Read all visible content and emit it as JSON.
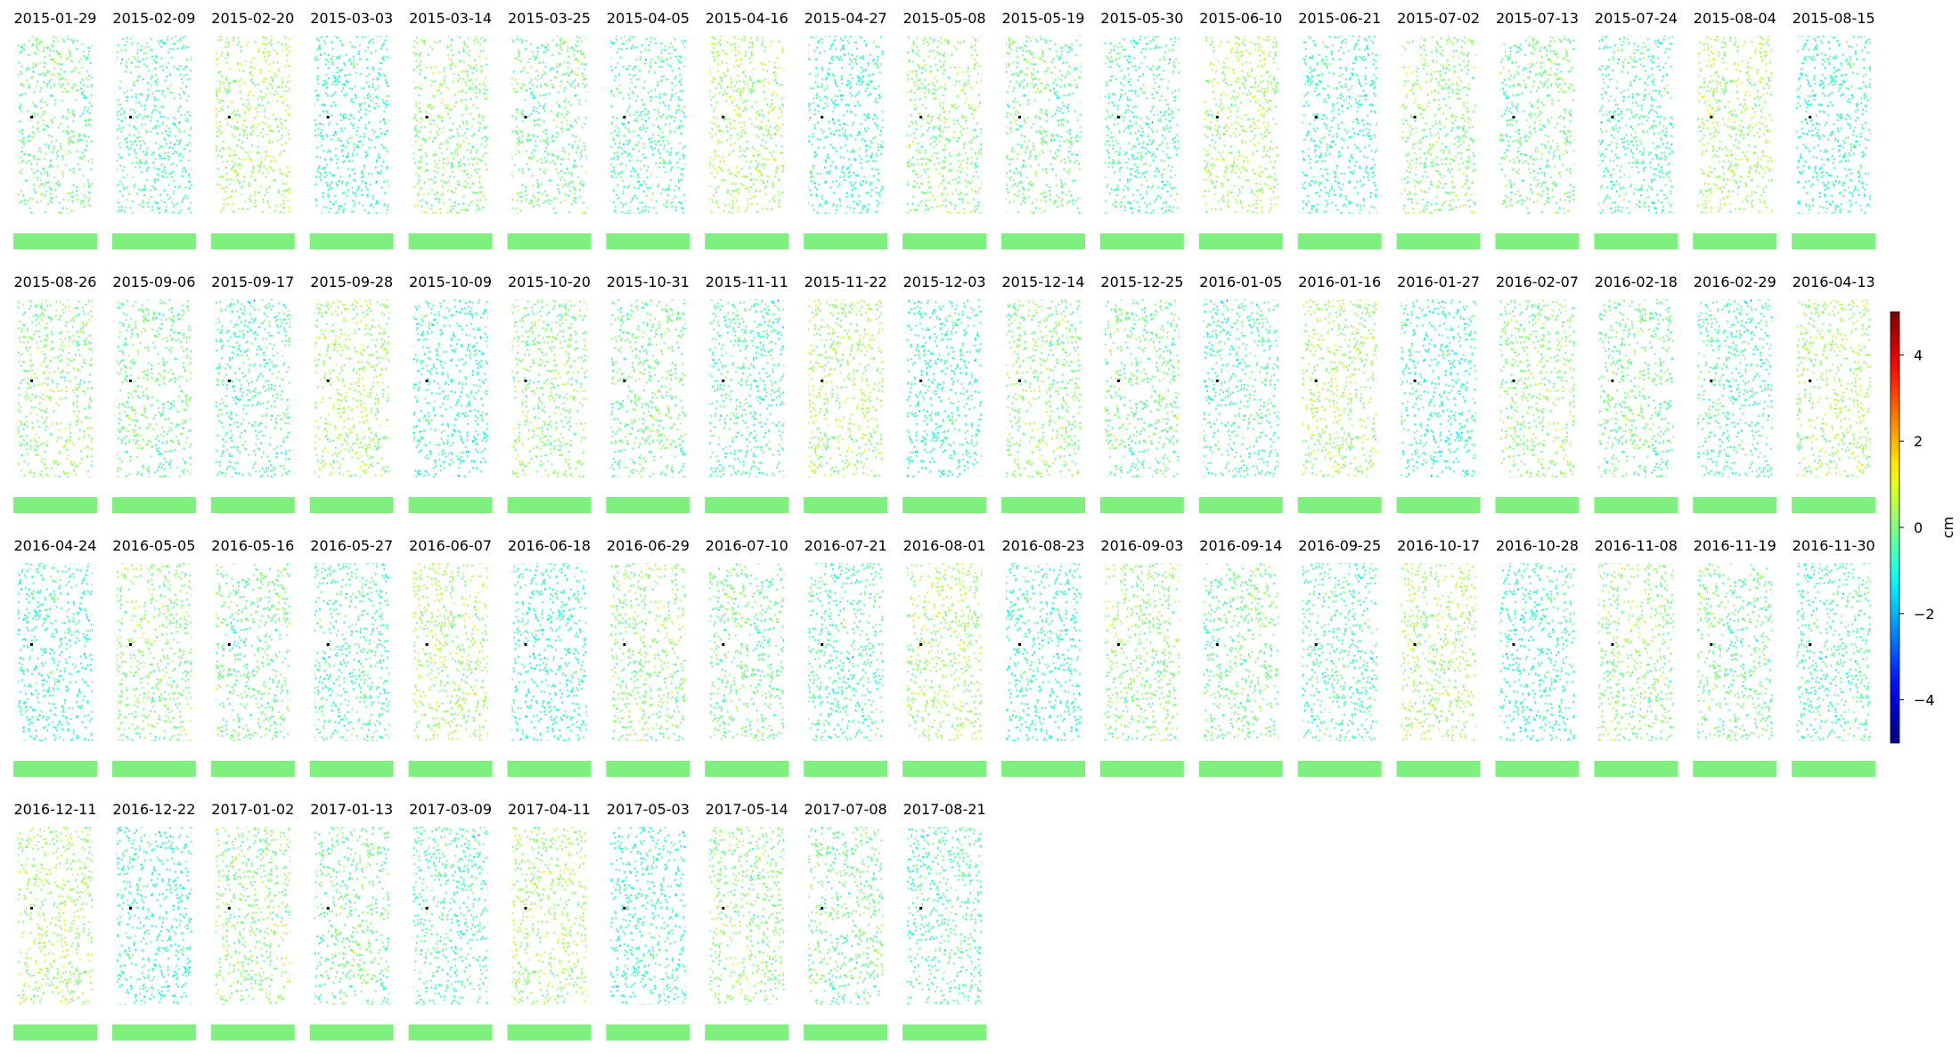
{
  "chart_data": {
    "type": "image-grid",
    "panels": [
      "2015-01-29",
      "2015-02-09",
      "2015-02-20",
      "2015-03-03",
      "2015-03-14",
      "2015-03-25",
      "2015-04-05",
      "2015-04-16",
      "2015-04-27",
      "2015-05-08",
      "2015-05-19",
      "2015-05-30",
      "2015-06-10",
      "2015-06-21",
      "2015-07-02",
      "2015-07-13",
      "2015-07-24",
      "2015-08-04",
      "2015-08-15",
      "2015-08-26",
      "2015-09-06",
      "2015-09-17",
      "2015-09-28",
      "2015-10-09",
      "2015-10-20",
      "2015-10-31",
      "2015-11-11",
      "2015-11-22",
      "2015-12-03",
      "2015-12-14",
      "2015-12-25",
      "2016-01-05",
      "2016-01-16",
      "2016-01-27",
      "2016-02-07",
      "2016-02-18",
      "2016-02-29",
      "2016-04-13",
      "2016-04-24",
      "2016-05-05",
      "2016-05-16",
      "2016-05-27",
      "2016-06-07",
      "2016-06-18",
      "2016-06-29",
      "2016-07-10",
      "2016-07-21",
      "2016-08-01",
      "2016-08-23",
      "2016-09-03",
      "2016-09-14",
      "2016-09-25",
      "2016-10-17",
      "2016-10-28",
      "2016-11-08",
      "2016-11-19",
      "2016-11-30",
      "2016-12-11",
      "2016-12-22",
      "2017-01-02",
      "2017-01-13",
      "2017-03-09",
      "2017-04-11",
      "2017-05-03",
      "2017-05-14",
      "2017-07-08",
      "2017-08-21"
    ],
    "colormap": "jet",
    "colorbar_label": "cm",
    "clim": [
      -5,
      5
    ],
    "cticks": [
      {
        "value": -4,
        "label": "−4"
      },
      {
        "value": -2,
        "label": "−2"
      },
      0,
      2,
      4
    ]
  }
}
